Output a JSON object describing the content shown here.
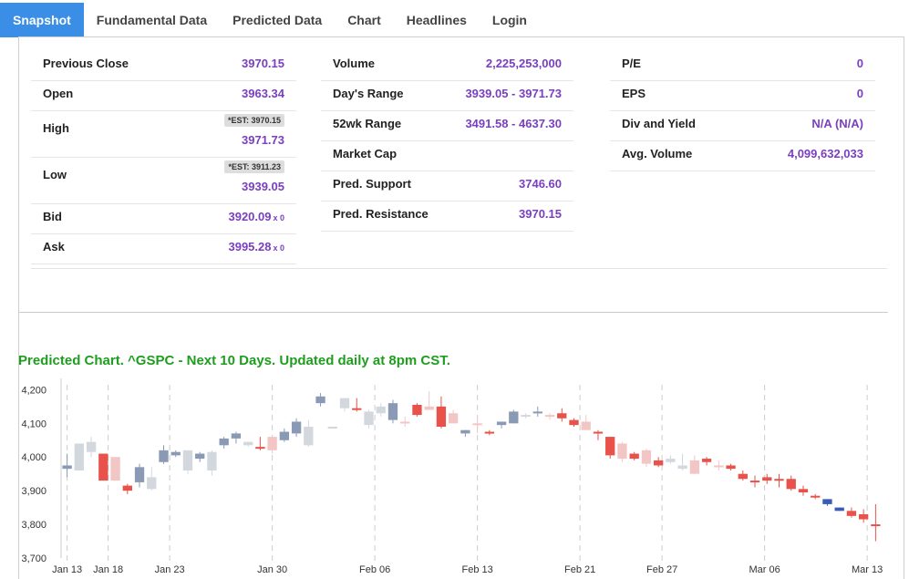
{
  "tabs": [
    "Snapshot",
    "Fundamental Data",
    "Predicted Data",
    "Chart",
    "Headlines",
    "Login"
  ],
  "quote": {
    "col1": [
      {
        "label": "Previous Close",
        "value": "3970.15"
      },
      {
        "label": "Open",
        "value": "3963.34"
      },
      {
        "label": "High",
        "est": "*EST: 3970.15",
        "value": "3971.73"
      },
      {
        "label": "Low",
        "est": "*EST: 3911.23",
        "value": "3939.05"
      },
      {
        "label": "Bid",
        "value": "3920.09",
        "sub": "x 0"
      },
      {
        "label": "Ask",
        "value": "3995.28",
        "sub": "x 0"
      }
    ],
    "col2": [
      {
        "label": "Volume",
        "value": "2,225,253,000"
      },
      {
        "label": "Day's Range",
        "value": "3939.05 - 3971.73"
      },
      {
        "label": "52wk Range",
        "value": "3491.58 - 4637.30"
      },
      {
        "label": "Market Cap",
        "value": ""
      },
      {
        "label": "Pred. Support",
        "value": "3746.60"
      },
      {
        "label": "Pred. Resistance",
        "value": "3970.15"
      }
    ],
    "col3": [
      {
        "label": "P/E",
        "value": "0"
      },
      {
        "label": "EPS",
        "value": "0"
      },
      {
        "label": "Div and Yield",
        "value": "N/A (N/A)"
      },
      {
        "label": "Avg. Volume",
        "value": "4,099,632,033"
      }
    ]
  },
  "chart_title": "Predicted Chart. ^GSPC - Next 10 Days. Updated daily at 8pm CST.",
  "chart_data": {
    "type": "candlestick",
    "ylim": [
      3700,
      4220
    ],
    "yticks": [
      3700,
      3800,
      3900,
      4000,
      4100,
      4200
    ],
    "ytick_labels": [
      "3,700",
      "3,800",
      "3,900",
      "4,000",
      "4,100",
      "4,200"
    ],
    "xtick_labels": [
      "Jan 13",
      "Jan 18",
      "Jan 23",
      "Jan 30",
      "Feb 06",
      "Feb 13",
      "Feb 21",
      "Feb 27",
      "Mar 06",
      "Mar 13"
    ],
    "xtick_index": [
      0,
      2,
      5,
      10,
      15,
      20,
      25,
      29,
      34,
      39
    ],
    "colors": {
      "gray_up": "#8a9ab5",
      "gray_down": "#d3d7de",
      "pink": "#f3c6c6",
      "red": "#e8524a",
      "blue": "#3a5bb8"
    },
    "candles": [
      {
        "o": 3965,
        "h": 4010,
        "l": 3940,
        "c": 3975,
        "color": "gray_up"
      },
      {
        "o": 4040,
        "h": 4040,
        "l": 3960,
        "c": 3960,
        "color": "gray_down"
      },
      {
        "o": 4045,
        "h": 4060,
        "l": 4000,
        "c": 4015,
        "color": "gray_down"
      },
      {
        "o": 4010,
        "h": 4010,
        "l": 3930,
        "c": 3930,
        "color": "red"
      },
      {
        "o": 4000,
        "h": 4000,
        "l": 3930,
        "c": 3930,
        "color": "pink"
      },
      {
        "o": 3915,
        "h": 3920,
        "l": 3890,
        "c": 3900,
        "color": "red"
      },
      {
        "o": 3925,
        "h": 3980,
        "l": 3910,
        "c": 3970,
        "color": "gray_up"
      },
      {
        "o": 3905,
        "h": 3970,
        "l": 3900,
        "c": 3940,
        "color": "gray_down"
      },
      {
        "o": 3985,
        "h": 4035,
        "l": 3980,
        "c": 4020,
        "color": "gray_up"
      },
      {
        "o": 4005,
        "h": 4020,
        "l": 4000,
        "c": 4015,
        "color": "gray_up"
      },
      {
        "o": 4020,
        "h": 4020,
        "l": 3950,
        "c": 3960,
        "color": "gray_down"
      },
      {
        "o": 3995,
        "h": 4015,
        "l": 3985,
        "c": 4010,
        "color": "gray_up"
      },
      {
        "o": 3960,
        "h": 4020,
        "l": 3945,
        "c": 4015,
        "color": "gray_down"
      },
      {
        "o": 4035,
        "h": 4060,
        "l": 4025,
        "c": 4055,
        "color": "gray_up"
      },
      {
        "o": 4055,
        "h": 4075,
        "l": 4040,
        "c": 4070,
        "color": "gray_up"
      },
      {
        "o": 4045,
        "h": 4045,
        "l": 4030,
        "c": 4035,
        "color": "gray_down"
      },
      {
        "o": 4030,
        "h": 4060,
        "l": 4020,
        "c": 4025,
        "color": "red"
      },
      {
        "o": 4060,
        "h": 4060,
        "l": 4010,
        "c": 4020,
        "color": "pink"
      },
      {
        "o": 4050,
        "h": 4085,
        "l": 4045,
        "c": 4075,
        "color": "gray_up"
      },
      {
        "o": 4070,
        "h": 4115,
        "l": 4060,
        "c": 4105,
        "color": "gray_up"
      },
      {
        "o": 4035,
        "h": 4110,
        "l": 4030,
        "c": 4090,
        "color": "gray_down"
      },
      {
        "o": 4160,
        "h": 4190,
        "l": 4150,
        "c": 4180,
        "color": "gray_up"
      },
      {
        "o": 4090,
        "h": 4090,
        "l": 4085,
        "c": 4090,
        "color": "gray_down"
      },
      {
        "o": 4145,
        "h": 4170,
        "l": 4135,
        "c": 4175,
        "color": "gray_down"
      },
      {
        "o": 4145,
        "h": 4175,
        "l": 4135,
        "c": 4140,
        "color": "red"
      },
      {
        "o": 4095,
        "h": 4140,
        "l": 4085,
        "c": 4135,
        "color": "gray_down"
      },
      {
        "o": 4130,
        "h": 4160,
        "l": 4120,
        "c": 4150,
        "color": "gray_down"
      },
      {
        "o": 4110,
        "h": 4170,
        "l": 4100,
        "c": 4160,
        "color": "gray_up"
      },
      {
        "o": 4100,
        "h": 4120,
        "l": 4090,
        "c": 4105,
        "color": "pink"
      },
      {
        "o": 4155,
        "h": 4160,
        "l": 4120,
        "c": 4125,
        "color": "red"
      },
      {
        "o": 4150,
        "h": 4195,
        "l": 4140,
        "c": 4140,
        "color": "pink"
      },
      {
        "o": 4150,
        "h": 4180,
        "l": 4085,
        "c": 4090,
        "color": "red"
      },
      {
        "o": 4130,
        "h": 4140,
        "l": 4100,
        "c": 4100,
        "color": "pink"
      },
      {
        "o": 4070,
        "h": 4080,
        "l": 4060,
        "c": 4080,
        "color": "gray_up"
      },
      {
        "o": 4100,
        "h": 4125,
        "l": 4070,
        "c": 4100,
        "color": "pink"
      },
      {
        "o": 4075,
        "h": 4080,
        "l": 4065,
        "c": 4070,
        "color": "red"
      },
      {
        "o": 4095,
        "h": 4105,
        "l": 4085,
        "c": 4105,
        "color": "gray_up"
      },
      {
        "o": 4135,
        "h": 4140,
        "l": 4100,
        "c": 4100,
        "color": "gray_up"
      },
      {
        "o": 4120,
        "h": 4130,
        "l": 4115,
        "c": 4125,
        "color": "gray_down"
      },
      {
        "o": 4130,
        "h": 4150,
        "l": 4120,
        "c": 4135,
        "color": "gray_up"
      },
      {
        "o": 4125,
        "h": 4130,
        "l": 4110,
        "c": 4120,
        "color": "pink"
      },
      {
        "o": 4130,
        "h": 4145,
        "l": 4105,
        "c": 4115,
        "color": "red"
      },
      {
        "o": 4110,
        "h": 4115,
        "l": 4090,
        "c": 4095,
        "color": "red"
      },
      {
        "o": 4105,
        "h": 4125,
        "l": 4080,
        "c": 4080,
        "color": "pink"
      },
      {
        "o": 4075,
        "h": 4080,
        "l": 4050,
        "c": 4075,
        "color": "red"
      },
      {
        "o": 4060,
        "h": 4060,
        "l": 3995,
        "c": 4005,
        "color": "red"
      },
      {
        "o": 4040,
        "h": 4045,
        "l": 3985,
        "c": 3995,
        "color": "pink"
      },
      {
        "o": 4010,
        "h": 4015,
        "l": 3990,
        "c": 3995,
        "color": "red"
      },
      {
        "o": 4020,
        "h": 4025,
        "l": 3970,
        "c": 3980,
        "color": "pink"
      },
      {
        "o": 3990,
        "h": 4000,
        "l": 3970,
        "c": 3975,
        "color": "red"
      },
      {
        "o": 3995,
        "h": 4005,
        "l": 3980,
        "c": 3985,
        "color": "gray_down"
      },
      {
        "o": 3975,
        "h": 4010,
        "l": 3960,
        "c": 3965,
        "color": "gray_down"
      },
      {
        "o": 3990,
        "h": 4005,
        "l": 3950,
        "c": 3950,
        "color": "pink"
      },
      {
        "o": 3995,
        "h": 4000,
        "l": 3975,
        "c": 3985,
        "color": "red"
      },
      {
        "o": 3970,
        "h": 3990,
        "l": 3960,
        "c": 3975,
        "color": "pink"
      },
      {
        "o": 3975,
        "h": 3980,
        "l": 3960,
        "c": 3965,
        "color": "red"
      },
      {
        "o": 3950,
        "h": 3960,
        "l": 3930,
        "c": 3935,
        "color": "red"
      },
      {
        "o": 3930,
        "h": 3945,
        "l": 3910,
        "c": 3925,
        "color": "red"
      },
      {
        "o": 3940,
        "h": 3950,
        "l": 3920,
        "c": 3930,
        "color": "red"
      },
      {
        "o": 3930,
        "h": 3950,
        "l": 3910,
        "c": 3935,
        "color": "red"
      },
      {
        "o": 3935,
        "h": 3945,
        "l": 3900,
        "c": 3905,
        "color": "red"
      },
      {
        "o": 3905,
        "h": 3915,
        "l": 3885,
        "c": 3895,
        "color": "red"
      },
      {
        "o": 3885,
        "h": 3890,
        "l": 3875,
        "c": 3880,
        "color": "red"
      },
      {
        "o": 3860,
        "h": 3875,
        "l": 3855,
        "c": 3875,
        "color": "blue"
      },
      {
        "o": 3850,
        "h": 3845,
        "l": 3840,
        "c": 3840,
        "color": "blue"
      },
      {
        "o": 3840,
        "h": 3850,
        "l": 3820,
        "c": 3825,
        "color": "red"
      },
      {
        "o": 3830,
        "h": 3845,
        "l": 3805,
        "c": 3815,
        "color": "red"
      },
      {
        "o": 3800,
        "h": 3860,
        "l": 3750,
        "c": 3800,
        "color": "red"
      }
    ]
  }
}
